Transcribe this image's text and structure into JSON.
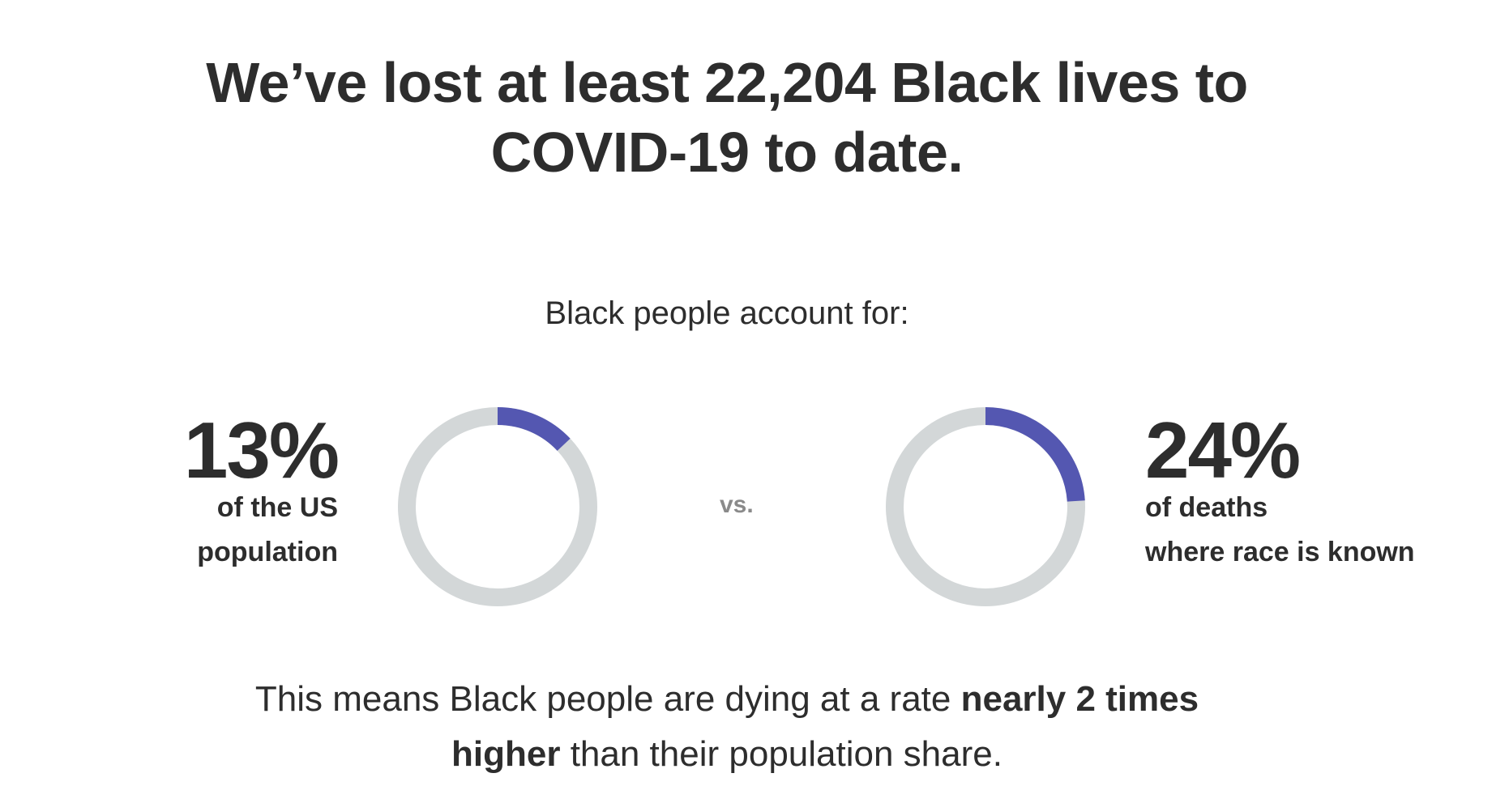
{
  "title": [
    "We’ve lost at least 22,204 Black lives to",
    "COVID-19 to date."
  ],
  "subtitle": "Black people account for:",
  "separator": "vs.",
  "chart_data": [
    {
      "type": "donut",
      "values": [
        13
      ],
      "value_labels": [
        "13%"
      ],
      "caption": [
        "of the US",
        "population"
      ],
      "color": "#5457b1",
      "track_color": "#d3d7d8",
      "label_side": "left"
    },
    {
      "type": "donut",
      "values": [
        24
      ],
      "value_labels": [
        "24%"
      ],
      "caption": [
        "of deaths",
        "where race is known"
      ],
      "color": "#5457b1",
      "track_color": "#d3d7d8",
      "label_side": "right"
    }
  ],
  "conclusion": [
    {
      "text": "This means Black people are dying at a rate ",
      "bold": false
    },
    {
      "text": "nearly 2 times higher",
      "bold": true
    },
    {
      "text": " than their population share.",
      "bold": false
    }
  ]
}
